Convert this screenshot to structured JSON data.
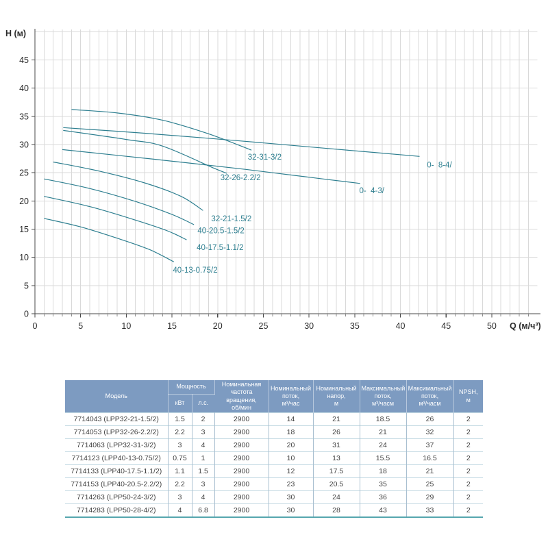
{
  "colors": {
    "curve": "#2e7f90",
    "grid": "#d9d9d9",
    "axis": "#4a4a4a",
    "tick": "#8c8c8c",
    "tick_text": "#2b2b2b",
    "table_header_bg": "#7d9bc1",
    "table_header_text": "#ffffff",
    "table_border_h": "#c2d8e2",
    "table_border_v": "#a9bfd0",
    "table_bottom": "#55a6ae"
  },
  "chart_data": {
    "type": "line",
    "title": "",
    "xlabel": "Q (м/ч³)",
    "ylabel": "H (м)",
    "xlim": [
      0,
      55
    ],
    "ylim": [
      0,
      50.4
    ],
    "grid": true,
    "legend_position": "inline-labels",
    "x_major_ticks": [
      0,
      5,
      10,
      15,
      20,
      25,
      30,
      35,
      40,
      45,
      50
    ],
    "y_major_ticks": [
      0,
      5,
      10,
      15,
      20,
      25,
      30,
      35,
      40,
      45
    ],
    "x_minor_step": 1,
    "x_minor_max": 54,
    "series": [
      {
        "name": "32-31-3/2",
        "points": [
          [
            4,
            36.2
          ],
          [
            9,
            35.6
          ],
          [
            14,
            34.3
          ],
          [
            19,
            31.9
          ],
          [
            23.7,
            29.0
          ]
        ],
        "label_at": [
          23.3,
          27.3
        ]
      },
      {
        "name": "0-  8-4/",
        "points": [
          [
            3.1,
            33.0
          ],
          [
            12,
            32.0
          ],
          [
            22,
            30.7
          ],
          [
            32,
            29.3
          ],
          [
            42.1,
            27.9
          ]
        ],
        "label_at": [
          42.9,
          25.9
        ]
      },
      {
        "name": "32-26-2.2/2",
        "points": [
          [
            3.1,
            32.5
          ],
          [
            10,
            30.9
          ],
          [
            14,
            29.7
          ],
          [
            19.6,
            25.8
          ],
          [
            21,
            24.9
          ]
        ],
        "label_at": [
          20.3,
          23.7
        ]
      },
      {
        "name": "0-  4-3/",
        "points": [
          [
            3,
            29.1
          ],
          [
            13,
            27.4
          ],
          [
            23,
            25.6
          ],
          [
            30,
            24.2
          ],
          [
            35.6,
            23.1
          ]
        ],
        "label_at": [
          35.5,
          21.4
        ]
      },
      {
        "name": "32-21-1.5/2",
        "points": [
          [
            2,
            26.9
          ],
          [
            7,
            25.3
          ],
          [
            12,
            23.2
          ],
          [
            16,
            20.8
          ],
          [
            18.4,
            18.3
          ]
        ],
        "label_at": [
          19.3,
          16.4
        ]
      },
      {
        "name": "40-20.5-1.5/2",
        "points": [
          [
            1,
            23.9
          ],
          [
            6,
            22.2
          ],
          [
            11,
            19.9
          ],
          [
            15,
            17.6
          ],
          [
            17.4,
            15.8
          ]
        ],
        "label_at": [
          17.8,
          14.3
        ]
      },
      {
        "name": "40-17.5-1.1/2",
        "points": [
          [
            1,
            20.8
          ],
          [
            6,
            19.0
          ],
          [
            11,
            16.6
          ],
          [
            14.5,
            14.7
          ],
          [
            16.6,
            13.1
          ]
        ],
        "label_at": [
          17.7,
          11.3
        ]
      },
      {
        "name": "40-13-0.75/2",
        "points": [
          [
            1,
            16.9
          ],
          [
            5,
            15.4
          ],
          [
            9,
            13.4
          ],
          [
            12.5,
            11.4
          ],
          [
            15.2,
            9.2
          ]
        ],
        "label_at": [
          15.1,
          7.3
        ]
      }
    ]
  },
  "table": {
    "header": {
      "model": "Модель",
      "power": "Мощность",
      "kw": "кВт",
      "hp": "л.с.",
      "speed": "Номинальная\nчастота вращения,\nоб/мин",
      "nominal_flow": "Номинальный\nпоток,\nм³/час",
      "nominal_head": "Номинальный\nнапор,\nм",
      "max_flow": "Максимальный\nпоток,\nм³/часм",
      "max_head": "Максимальный\nпоток,\nм³/часм",
      "npsh": "NPSH,\nм"
    },
    "rows": [
      [
        "7714043 (LPP32-21-1.5/2)",
        "1.5",
        "2",
        "2900",
        "14",
        "21",
        "18.5",
        "26",
        "2"
      ],
      [
        "7714053 (LPP32-26-2.2/2)",
        "2.2",
        "3",
        "2900",
        "18",
        "26",
        "21",
        "32",
        "2"
      ],
      [
        "7714063 (LPP32-31-3/2)",
        "3",
        "4",
        "2900",
        "20",
        "31",
        "24",
        "37",
        "2"
      ],
      [
        "7714123 (LPP40-13-0.75/2)",
        "0.75",
        "1",
        "2900",
        "10",
        "13",
        "15.5",
        "16.5",
        "2"
      ],
      [
        "7714133 (LPP40-17.5-1.1/2)",
        "1.1",
        "1.5",
        "2900",
        "12",
        "17.5",
        "18",
        "21",
        "2"
      ],
      [
        "7714153 (LPP40-20.5-2.2/2)",
        "2.2",
        "3",
        "2900",
        "23",
        "20.5",
        "35",
        "25",
        "2"
      ],
      [
        "7714263 (LPP50-24-3/2)",
        "3",
        "4",
        "2900",
        "30",
        "24",
        "36",
        "29",
        "2"
      ],
      [
        "7714283 (LPP50-28-4/2)",
        "4",
        "6.8",
        "2900",
        "30",
        "28",
        "43",
        "33",
        "2"
      ]
    ]
  }
}
